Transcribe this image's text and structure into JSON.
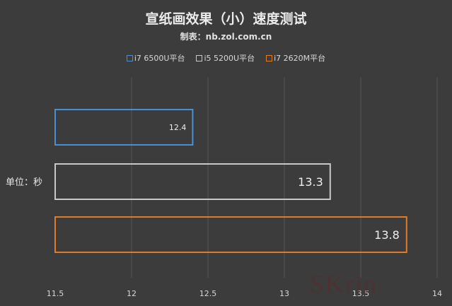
{
  "chart_data": {
    "type": "bar",
    "orientation": "horizontal",
    "title": "宣纸画效果（小）速度测试",
    "subtitle": "制表：nb.zol.com.cn",
    "unit_label": "单位：秒",
    "xlim": [
      11.5,
      14
    ],
    "x_ticks": [
      "11.5",
      "12",
      "12.5",
      "13",
      "13.5",
      "14"
    ],
    "grid": "vertical",
    "legend_position": "top-center",
    "series": [
      {
        "name": "i7 6500U平台",
        "value": 12.4,
        "label": "12.4",
        "color": "#4a8fd6",
        "label_size": "small"
      },
      {
        "name": "i5 5200U平台",
        "value": 13.3,
        "label": "13.3",
        "color": "#c8c8c8",
        "label_size": "large"
      },
      {
        "name": "i7 2620M平台",
        "value": 13.8,
        "label": "13.8",
        "color": "#e07b28",
        "label_size": "large"
      }
    ]
  },
  "colors": {
    "background": "#3c3c3c",
    "gridline": "#555555",
    "text": "#e8e8e8"
  },
  "watermark": "SKrin"
}
